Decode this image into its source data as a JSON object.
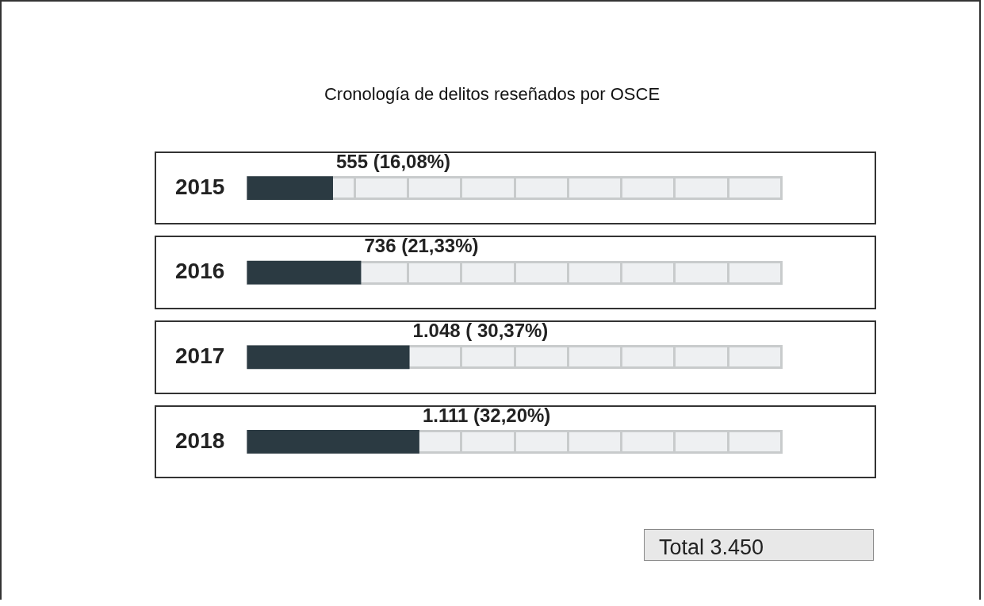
{
  "chart_data": {
    "type": "bar",
    "orientation": "horizontal",
    "title": "Cronología de delitos reseñados por OSCE",
    "categories": [
      "2015",
      "2016",
      "2017",
      "2018"
    ],
    "values": [
      555,
      736,
      1048,
      1111
    ],
    "value_labels": [
      "555 (16,08%)",
      "736 (21,33%)",
      "1.048 ( 30,37%)",
      "1.111 (32,20%)"
    ],
    "color": "#2b3a42",
    "tick_labels": "y",
    "grid": false,
    "legend": false,
    "annotations": [
      "Total 3.450"
    ]
  }
}
